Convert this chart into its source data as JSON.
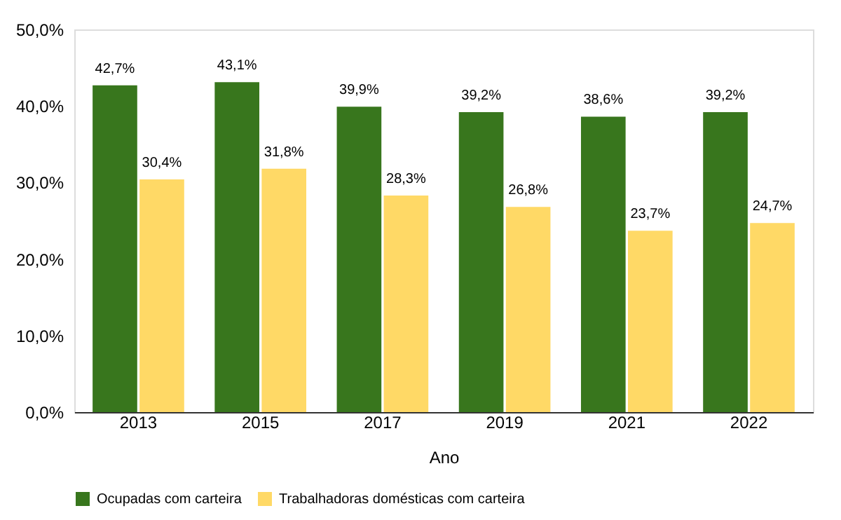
{
  "chart_data": {
    "type": "bar",
    "xlabel": "Ano",
    "categories": [
      "2013",
      "2015",
      "2017",
      "2019",
      "2021",
      "2022"
    ],
    "series": [
      {
        "name": "Ocupadas com carteira",
        "color": "#38761d",
        "values": [
          42.7,
          43.1,
          39.9,
          39.2,
          38.6,
          39.2
        ],
        "value_labels": [
          "42,7%",
          "43,1%",
          "39,9%",
          "39,2%",
          "38,6%",
          "39,2%"
        ]
      },
      {
        "name": "Trabalhadoras domésticas com carteira",
        "color": "#ffd966",
        "values": [
          30.4,
          31.8,
          28.3,
          26.8,
          23.7,
          24.7
        ],
        "value_labels": [
          "30,4%",
          "31,8%",
          "28,3%",
          "26,8%",
          "23,7%",
          "24,7%"
        ]
      }
    ],
    "ylim": [
      0,
      50
    ],
    "yticks": [
      {
        "value": 0,
        "label": "0,0%"
      },
      {
        "value": 10,
        "label": "10,0%"
      },
      {
        "value": 20,
        "label": "20,0%"
      },
      {
        "value": 30,
        "label": "30,0%"
      },
      {
        "value": 40,
        "label": "40,0%"
      },
      {
        "value": 50,
        "label": "50,0%"
      }
    ],
    "grid": false,
    "legend": "bottom"
  }
}
